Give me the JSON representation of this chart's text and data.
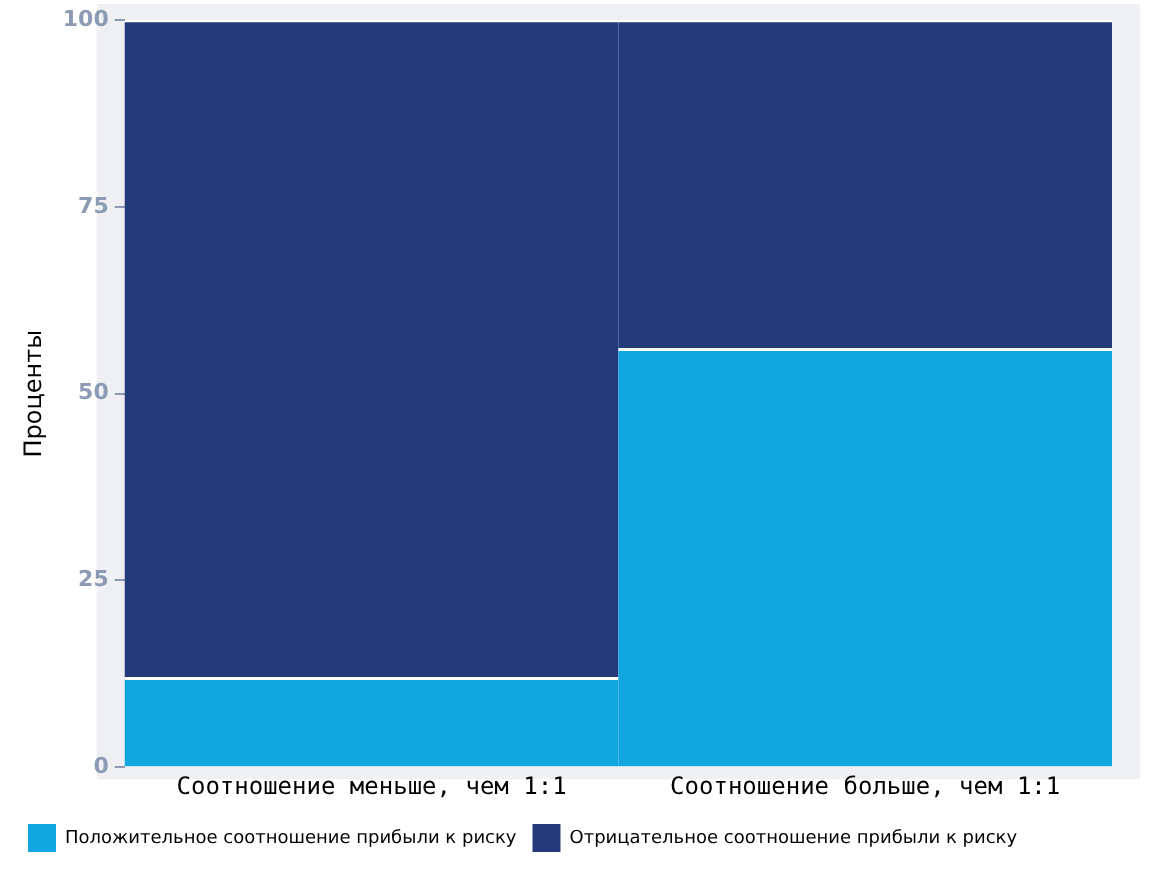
{
  "chart_data": {
    "type": "bar",
    "ylabel": "Проценты",
    "categories": [
      "Соотношение меньше, чем 1:1",
      "Соотношение больше, чем 1:1"
    ],
    "series": [
      {
        "name": "Положительное соотношение прибыли к риску",
        "color": "#12a6e0",
        "values": [
          12,
          56
        ]
      },
      {
        "name": "Отрицательное соотношение прибыли к риску",
        "color": "#253a7a",
        "values": [
          88,
          44
        ]
      }
    ],
    "stacked": true,
    "ylim": [
      0,
      100
    ],
    "yticks": [
      0,
      25,
      50,
      75,
      100
    ],
    "grid": false,
    "legend": "bottom left"
  }
}
